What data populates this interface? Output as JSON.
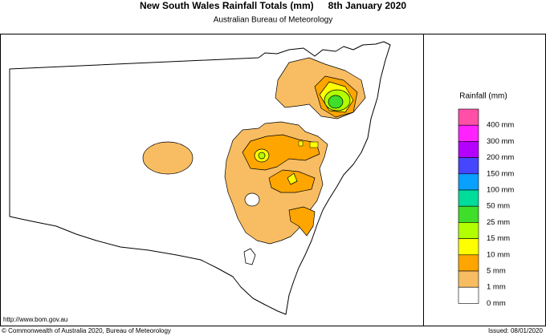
{
  "header": {
    "title": "New South Wales Rainfall Totals (mm)",
    "date": "8th January 2020",
    "subtitle": "Australian Bureau of Meteorology"
  },
  "legend": {
    "title": "Rainfall (mm)",
    "items": [
      {
        "label": "400 mm",
        "color": "#ff4fa6"
      },
      {
        "label": "300 mm",
        "color": "#ff22ff"
      },
      {
        "label": "200 mm",
        "color": "#b400ff"
      },
      {
        "label": "150 mm",
        "color": "#4646ff"
      },
      {
        "label": "100 mm",
        "color": "#0aa0ff"
      },
      {
        "label": "50 mm",
        "color": "#00dc9a"
      },
      {
        "label": "25 mm",
        "color": "#3ede2a"
      },
      {
        "label": "15 mm",
        "color": "#b2ff00"
      },
      {
        "label": "10 mm",
        "color": "#ffff00"
      },
      {
        "label": "5 mm",
        "color": "#ffa500"
      },
      {
        "label": "1 mm",
        "color": "#f8bd62"
      },
      {
        "label": "0 mm",
        "color": "#ffffff"
      }
    ]
  },
  "footer": {
    "url": "http://www.bom.gov.au",
    "copyright": "© Commonwealth of Australia 2020, Bureau of Meteorology",
    "issued": "Issued: 08/01/2020"
  }
}
